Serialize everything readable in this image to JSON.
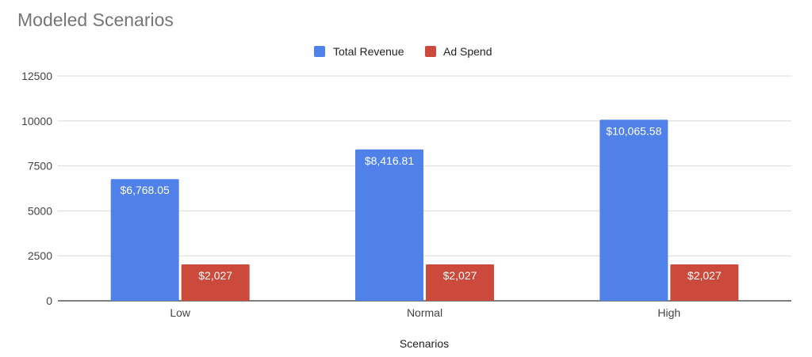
{
  "chart_data": {
    "type": "bar",
    "title": "Modeled Scenarios",
    "xlabel": "Scenarios",
    "ylabel": "",
    "categories": [
      "Low",
      "Normal",
      "High"
    ],
    "ylim": [
      0,
      12500
    ],
    "yticks": [
      0,
      2500,
      5000,
      7500,
      10000,
      12500
    ],
    "grid": true,
    "legend_position": "top",
    "series": [
      {
        "name": "Total Revenue",
        "color": "#4f81e8",
        "values": [
          6768.05,
          8416.81,
          10065.58
        ],
        "labels": [
          "$6,768.05",
          "$8,416.81",
          "$10,065.58"
        ]
      },
      {
        "name": "Ad Spend",
        "color": "#cc4a3c",
        "values": [
          2027,
          2027,
          2027
        ],
        "labels": [
          "$2,027",
          "$2,027",
          "$2,027"
        ]
      }
    ]
  }
}
